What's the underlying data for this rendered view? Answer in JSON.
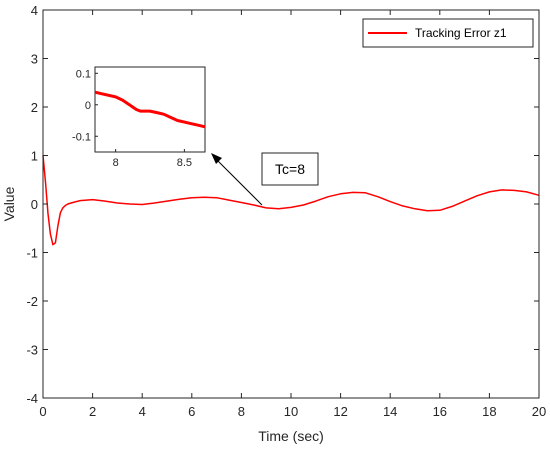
{
  "chart_data": {
    "type": "line",
    "title": "",
    "xlabel": "Time (sec)",
    "ylabel": "Value",
    "xlim": [
      0,
      20
    ],
    "ylim": [
      -4,
      4
    ],
    "x_ticks": [
      "0",
      "2",
      "4",
      "6",
      "8",
      "10",
      "12",
      "14",
      "16",
      "18",
      "20"
    ],
    "y_ticks": [
      "-4",
      "-3",
      "-2",
      "-1",
      "0",
      "1",
      "2",
      "3",
      "4"
    ],
    "grid": false,
    "legend_position": "top-right",
    "series": [
      {
        "name": "Tracking Error z1",
        "color": "#ff0000",
        "x": [
          0,
          0.1,
          0.2,
          0.3,
          0.4,
          0.5,
          0.6,
          0.7,
          0.8,
          0.9,
          1.0,
          1.2,
          1.5,
          2.0,
          2.5,
          3.0,
          3.5,
          4.0,
          4.5,
          5.0,
          5.5,
          6.0,
          6.5,
          7.0,
          7.5,
          8.0,
          8.5,
          9.0,
          9.5,
          10.0,
          10.5,
          11.0,
          11.5,
          12.0,
          12.5,
          13.0,
          13.5,
          14.0,
          14.5,
          15.0,
          15.5,
          16.0,
          16.5,
          17.0,
          17.5,
          18.0,
          18.5,
          19.0,
          19.5,
          20.0
        ],
        "y": [
          1.0,
          0.45,
          -0.2,
          -0.62,
          -0.84,
          -0.8,
          -0.45,
          -0.18,
          -0.08,
          -0.03,
          0.0,
          0.03,
          0.07,
          0.09,
          0.06,
          0.02,
          0.0,
          -0.01,
          0.02,
          0.06,
          0.1,
          0.13,
          0.14,
          0.13,
          0.08,
          0.03,
          -0.02,
          -0.08,
          -0.1,
          -0.07,
          -0.02,
          0.06,
          0.15,
          0.21,
          0.24,
          0.23,
          0.15,
          0.05,
          -0.04,
          -0.1,
          -0.14,
          -0.13,
          -0.05,
          0.06,
          0.17,
          0.25,
          0.29,
          0.28,
          0.25,
          0.18
        ]
      }
    ],
    "inset": {
      "xlim": [
        7.85,
        8.65
      ],
      "ylim": [
        -0.15,
        0.12
      ],
      "x_ticks": [
        "8",
        "8.5"
      ],
      "y_ticks": [
        "0.1",
        "0",
        "-0.1"
      ],
      "series": {
        "x": [
          7.85,
          7.9,
          8.0,
          8.05,
          8.1,
          8.15,
          8.18,
          8.2,
          8.25,
          8.3,
          8.35,
          8.4,
          8.45,
          8.5,
          8.55,
          8.6,
          8.65
        ],
        "y": [
          0.04,
          0.035,
          0.025,
          0.015,
          0.0,
          -0.015,
          -0.02,
          -0.02,
          -0.02,
          -0.025,
          -0.03,
          -0.04,
          -0.05,
          -0.055,
          -0.06,
          -0.065,
          -0.07
        ]
      }
    },
    "annotations": [
      {
        "text": "Tc=8",
        "arrow_to_x": 9.0,
        "arrow_to_y": 0.0
      }
    ]
  }
}
